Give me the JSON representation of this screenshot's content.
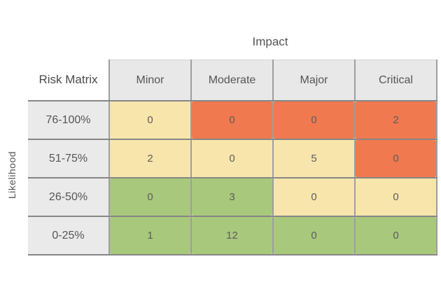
{
  "colors": {
    "yellow": "#F8E5AB",
    "orange": "#F0794F",
    "green": "#A8C87B",
    "header_bg": "#E8E8E8",
    "row_label_bg": "#EAEAEA",
    "grid_horizontal": "#868686",
    "grid_vertical": "#9E9E9E",
    "text": "#555555"
  },
  "chart_data": {
    "type": "heatmap",
    "title": "Impact",
    "ylabel": "Likelihood",
    "corner_label": "Risk Matrix",
    "columns": [
      "Minor",
      "Moderate",
      "Major",
      "Critical"
    ],
    "rows": [
      "76-100%",
      "51-75%",
      "26-50%",
      "0-25%"
    ],
    "values": [
      [
        0,
        0,
        0,
        2
      ],
      [
        2,
        0,
        5,
        0
      ],
      [
        0,
        3,
        0,
        0
      ],
      [
        1,
        12,
        0,
        0
      ]
    ],
    "cell_colors": [
      [
        "yellow",
        "orange",
        "orange",
        "orange"
      ],
      [
        "yellow",
        "yellow",
        "yellow",
        "orange"
      ],
      [
        "green",
        "green",
        "yellow",
        "yellow"
      ],
      [
        "green",
        "green",
        "green",
        "green"
      ]
    ],
    "legend": "none",
    "grid": true
  }
}
